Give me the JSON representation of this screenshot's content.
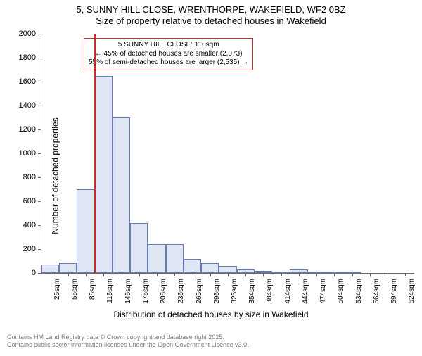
{
  "title_line1": "5, SUNNY HILL CLOSE, WRENTHORPE, WAKEFIELD, WF2 0BZ",
  "title_line2": "Size of property relative to detached houses in Wakefield",
  "ylabel": "Number of detached properties",
  "xlabel": "Distribution of detached houses by size in Wakefield",
  "footer_line1": "Contains HM Land Registry data © Crown copyright and database right 2025.",
  "footer_line2": "Contains public sector information licensed under the Open Government Licence v3.0.",
  "chart": {
    "type": "histogram",
    "ylim": [
      0,
      2000
    ],
    "ytick_step": 200,
    "yticks": [
      0,
      200,
      400,
      600,
      800,
      1000,
      1200,
      1400,
      1600,
      1800,
      2000
    ],
    "xticks": [
      "25sqm",
      "55sqm",
      "85sqm",
      "115sqm",
      "145sqm",
      "175sqm",
      "205sqm",
      "235sqm",
      "265sqm",
      "295sqm",
      "325sqm",
      "354sqm",
      "384sqm",
      "414sqm",
      "444sqm",
      "474sqm",
      "504sqm",
      "534sqm",
      "564sqm",
      "594sqm",
      "624sqm"
    ],
    "bar_fill": "#dfe5f3",
    "bar_border": "#6679b8",
    "axis_color": "#6b6b6b",
    "background": "#ffffff",
    "bars": [
      70,
      80,
      700,
      1650,
      1300,
      420,
      240,
      240,
      120,
      80,
      60,
      30,
      20,
      10,
      30,
      10,
      5,
      5,
      0,
      0,
      0
    ],
    "marker": {
      "color": "#cf2626",
      "position_index": 3,
      "label_line1": "5 SUNNY HILL CLOSE: 110sqm",
      "label_line2": "← 45% of detached houses are smaller (2,073)",
      "label_line3": "55% of semi-detached houses are larger (2,535) →"
    }
  }
}
